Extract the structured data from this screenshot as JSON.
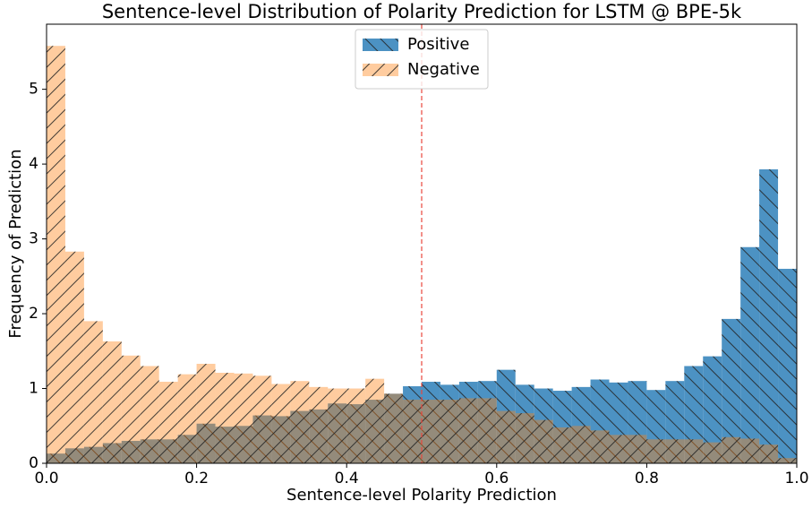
{
  "chart_data": {
    "type": "histogram",
    "title": "Sentence-level Distribution of Polarity Prediction for LSTM @ BPE-5k",
    "xlabel": "Sentence-level Polarity Prediction",
    "ylabel": "Frequency of Prediction",
    "bins": [
      0,
      0.025,
      0.05,
      0.075,
      0.1,
      0.125,
      0.15,
      0.175,
      0.2,
      0.225,
      0.25,
      0.275,
      0.3,
      0.325,
      0.35,
      0.375,
      0.4,
      0.425,
      0.45,
      0.475,
      0.5,
      0.525,
      0.55,
      0.575,
      0.6,
      0.625,
      0.65,
      0.675,
      0.7,
      0.725,
      0.75,
      0.775,
      0.8,
      0.825,
      0.85,
      0.875,
      0.9,
      0.925,
      0.95,
      0.975,
      1.0
    ],
    "series": [
      {
        "name": "Positive",
        "color": "#1f77b4",
        "opacity": 0.8,
        "hatch": "\\",
        "values": [
          0.13,
          0.2,
          0.22,
          0.27,
          0.3,
          0.32,
          0.32,
          0.38,
          0.53,
          0.49,
          0.5,
          0.64,
          0.63,
          0.7,
          0.72,
          0.8,
          0.79,
          0.85,
          0.93,
          1.03,
          1.09,
          1.05,
          1.09,
          1.1,
          1.25,
          1.05,
          1.0,
          0.97,
          1.02,
          1.12,
          1.08,
          1.1,
          0.98,
          1.1,
          1.3,
          1.43,
          1.93,
          2.89,
          3.93,
          2.6
        ]
      },
      {
        "name": "Negative",
        "color": "#ff7f0e",
        "opacity": 0.4,
        "hatch": "/",
        "values": [
          5.58,
          2.83,
          1.9,
          1.63,
          1.44,
          1.3,
          1.09,
          1.19,
          1.33,
          1.21,
          1.2,
          1.17,
          1.06,
          1.1,
          1.02,
          1.0,
          1.0,
          1.13,
          0.93,
          0.85,
          0.85,
          0.85,
          0.87,
          0.87,
          0.7,
          0.67,
          0.58,
          0.48,
          0.5,
          0.44,
          0.38,
          0.38,
          0.32,
          0.32,
          0.32,
          0.28,
          0.35,
          0.33,
          0.25,
          0.07
        ]
      }
    ],
    "vline": {
      "value": 0.5,
      "color": "#e8463c"
    },
    "xlim": [
      0,
      1.0
    ],
    "ylim": [
      0,
      5.87
    ],
    "xticks": [
      {
        "value": 0,
        "label": "0.0"
      },
      0.2,
      0.4,
      0.6,
      0.8,
      {
        "value": 1.0,
        "label": "1.0"
      }
    ],
    "yticks": [
      0,
      1,
      2,
      3,
      4,
      5
    ],
    "legend": "upper center"
  }
}
